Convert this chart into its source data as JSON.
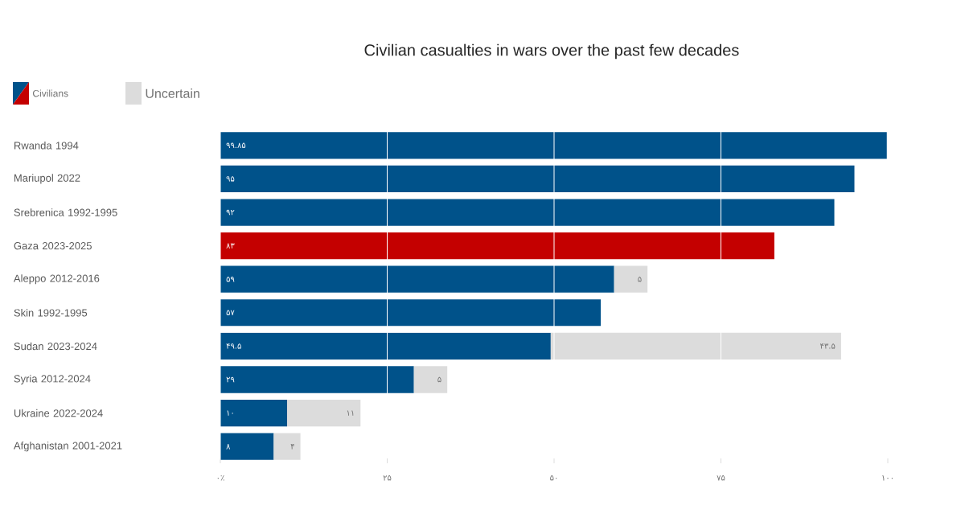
{
  "chart_data": {
    "type": "bar",
    "orientation": "horizontal",
    "stacked": true,
    "title": "Civilian casualties in wars over the past few decades",
    "categories": [
      "Rwanda 1994",
      "Mariupol 2022",
      "Srebrenica 1992-1995",
      "Gaza 2023-2025",
      "Aleppo 2012-2016",
      "Skin 1992-1995",
      "Sudan 2023-2024",
      "Syria 2012-2024",
      "Ukraine 2022-2024",
      "Afghanistan 2001-2021"
    ],
    "series": [
      {
        "name": "Civilians",
        "color": "#00528a",
        "colors": [
          "#00528a",
          "#00528a",
          "#00528a",
          "#c40000",
          "#00528a",
          "#00528a",
          "#00528a",
          "#00528a",
          "#00528a",
          "#00528a"
        ],
        "values": [
          99.85,
          95,
          92,
          83,
          59,
          57,
          49.5,
          29,
          10,
          8
        ],
        "value_labels": [
          "۹۹.۸۵",
          "۹۵",
          "۹۲",
          "۸۳",
          "۵۹",
          "۵۷",
          "۴۹.۵",
          "۲۹",
          "۱۰",
          "۸"
        ]
      },
      {
        "name": "Uncertain",
        "color": "#dcdcdc",
        "values": [
          null,
          null,
          null,
          null,
          5,
          null,
          43.5,
          5,
          11,
          4
        ],
        "value_labels": [
          null,
          null,
          null,
          null,
          "۵",
          null,
          "۴۳.۵",
          "۵",
          "۱۱",
          "۴"
        ]
      }
    ],
    "xlim": [
      0,
      100
    ],
    "xticks": [
      {
        "value": 0,
        "label": "۰٪"
      },
      {
        "value": 25,
        "label": "۲۵"
      },
      {
        "value": 50,
        "label": "۵۰"
      },
      {
        "value": 75,
        "label": "۷۵"
      },
      {
        "value": 100,
        "label": "۱۰۰"
      }
    ],
    "grid": "x",
    "legend": "top left"
  }
}
